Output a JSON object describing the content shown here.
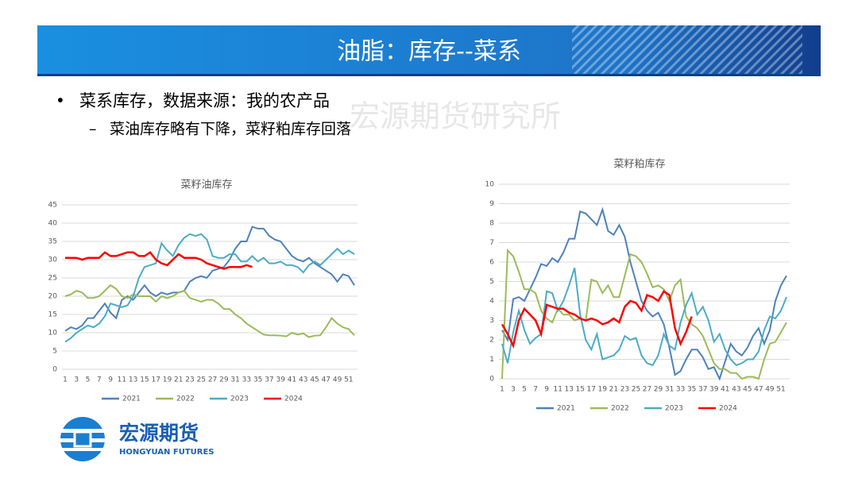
{
  "header": {
    "title": "油脂：库存--菜系"
  },
  "bullets": [
    "菜系库存，数据来源：我的农产品",
    "菜油库存略有下降，菜籽粕库存回落"
  ],
  "watermark": "宏源期货研究所",
  "logo": {
    "name": "宏源期货",
    "en": "HONGYUAN FUTURES"
  },
  "chart_data": [
    {
      "type": "line",
      "title": "菜籽油库存",
      "categories": [
        1,
        null,
        3,
        null,
        5,
        null,
        7,
        null,
        9,
        null,
        11,
        null,
        13,
        null,
        15,
        null,
        17,
        null,
        19,
        null,
        21,
        null,
        23,
        null,
        25,
        null,
        27,
        null,
        29,
        null,
        31,
        null,
        33,
        null,
        35,
        null,
        37,
        null,
        39,
        null,
        41,
        null,
        43,
        null,
        45,
        null,
        47,
        null,
        49,
        null,
        51,
        null
      ],
      "ylim": [
        0,
        45
      ],
      "yticks": [
        0,
        5,
        10,
        15,
        20,
        25,
        30,
        35,
        40,
        45
      ],
      "grid": true,
      "legend": "bottom",
      "series": [
        {
          "name": "2021",
          "color": "#4f81bd",
          "values": [
            10.5,
            11.5,
            11,
            12,
            14,
            14,
            16,
            18,
            15.5,
            14,
            19,
            20,
            19,
            21,
            23,
            21,
            20,
            21,
            20.5,
            21,
            21,
            21.5,
            24,
            25,
            25.5,
            25,
            27,
            27.5,
            28,
            30,
            33,
            35,
            35,
            39,
            38.5,
            38.5,
            36.5,
            35.5,
            35,
            33,
            31,
            30,
            29.5,
            30.5,
            29,
            28,
            27,
            26,
            24,
            26,
            25.5,
            23
          ]
        },
        {
          "name": "2022",
          "color": "#9bbb59",
          "values": [
            20,
            20.5,
            21.5,
            21,
            19.5,
            19.5,
            20,
            21.5,
            23,
            22,
            20,
            19.5,
            20.5,
            20,
            20,
            20,
            18.5,
            20,
            19.5,
            20,
            21,
            21.5,
            19.5,
            19,
            18.5,
            19,
            19,
            18,
            16.5,
            16.5,
            15,
            14,
            12.5,
            11.5,
            10.5,
            9.5,
            9.3,
            9.3,
            9.2,
            9,
            10,
            9.5,
            9.8,
            8.8,
            9.2,
            9.3,
            11.5,
            14,
            12.5,
            11.5,
            11,
            9.3
          ]
        },
        {
          "name": "2023",
          "color": "#4bacc6",
          "values": [
            7.5,
            8.5,
            10,
            11,
            12,
            11.5,
            12.5,
            14.5,
            18,
            17.5,
            17,
            17.5,
            20,
            25,
            28,
            28.5,
            29,
            34.5,
            32.5,
            31,
            34,
            36,
            37,
            36.5,
            37,
            35.5,
            31,
            30.5,
            30.5,
            31.5,
            31.5,
            29.5,
            29.5,
            31,
            29.5,
            30.5,
            29,
            29,
            29.5,
            28.5,
            28.5,
            28,
            26.5,
            28.5,
            29.5,
            28.5,
            30,
            31.5,
            33,
            31.5,
            32.5,
            31.5
          ]
        },
        {
          "name": "2024",
          "color": "#ff0000",
          "values": [
            30.5,
            30.5,
            30.5,
            30,
            30.5,
            30.5,
            30.5,
            32,
            31,
            31,
            31.5,
            32,
            32,
            31,
            31,
            32,
            30,
            29,
            28.5,
            30,
            31.5,
            30.5,
            30.5,
            30.5,
            30,
            29,
            28.5,
            28,
            27.5,
            28,
            28,
            28,
            28.5,
            28,
            null,
            null,
            null,
            null,
            null,
            null,
            null,
            null,
            null,
            null,
            null,
            null,
            null,
            null,
            null,
            null,
            null,
            null
          ]
        }
      ]
    },
    {
      "type": "line",
      "title": "菜籽粕库存",
      "categories": [
        1,
        null,
        3,
        null,
        5,
        null,
        7,
        null,
        9,
        null,
        11,
        null,
        13,
        null,
        15,
        null,
        17,
        null,
        19,
        null,
        21,
        null,
        23,
        null,
        25,
        null,
        27,
        null,
        29,
        null,
        31,
        null,
        33,
        null,
        35,
        null,
        37,
        null,
        39,
        null,
        41,
        null,
        43,
        null,
        45,
        null,
        47,
        null,
        49,
        null,
        51,
        null
      ],
      "ylim": [
        0,
        10
      ],
      "yticks": [
        0,
        1,
        2,
        3,
        4,
        5,
        6,
        7,
        8,
        9,
        10
      ],
      "grid": true,
      "legend": "bottom",
      "series": [
        {
          "name": "2021",
          "color": "#4f81bd",
          "values": [
            2.5,
            2,
            4.1,
            4.2,
            4,
            4.6,
            5.2,
            5.9,
            5.8,
            6.2,
            6,
            6.5,
            7.2,
            7.2,
            8.6,
            8.5,
            8.2,
            7.9,
            8.7,
            7.6,
            7.4,
            7.9,
            7.3,
            6,
            5,
            4,
            3.5,
            3.2,
            3.4,
            2.8,
            1.6,
            0.2,
            0.4,
            1,
            1.5,
            1.5,
            1.1,
            0.5,
            0.6,
            0,
            0.9,
            1.8,
            1.4,
            1.2,
            1.6,
            2.2,
            2.6,
            1.8,
            2.5,
            4,
            4.8,
            5.3
          ]
        },
        {
          "name": "2022",
          "color": "#9bbb59",
          "values": [
            0,
            6.6,
            6.3,
            5.5,
            4.6,
            4.6,
            4.4,
            3.5,
            3.1,
            2.9,
            3.6,
            3.3,
            3.3,
            3,
            3.1,
            3,
            5.1,
            5,
            4.4,
            4.8,
            4.2,
            4.2,
            5.3,
            6.4,
            6.3,
            6,
            5.4,
            4.7,
            4.8,
            4.6,
            4,
            4.8,
            5.1,
            3.2,
            2.8,
            2.6,
            2.2,
            1.5,
            0.8,
            0.5,
            0.5,
            0.3,
            0.3,
            0,
            0.1,
            0.1,
            0,
            1,
            1.8,
            1.9,
            2.4,
            2.9
          ]
        },
        {
          "name": "2023",
          "color": "#4bacc6",
          "values": [
            1.8,
            0.8,
            2.4,
            3.5,
            2.5,
            1.8,
            2.1,
            2.3,
            4.5,
            4.4,
            3.5,
            4,
            4.8,
            5.7,
            3.3,
            2,
            1.5,
            2.3,
            1,
            1.1,
            1.2,
            1.5,
            2.2,
            2,
            2.1,
            1.2,
            0.8,
            0.7,
            1.2,
            2.3,
            1.7,
            1.5,
            2.9,
            3.8,
            4.4,
            3.3,
            3.7,
            3,
            1.9,
            2.3,
            1.5,
            1,
            0.7,
            0.8,
            1,
            1,
            1.4,
            2.5,
            3.2,
            3.1,
            3.5,
            4.2
          ]
        },
        {
          "name": "2024",
          "color": "#ff0000",
          "values": [
            2.8,
            2.3,
            1.7,
            3,
            3.6,
            3.3,
            3,
            2.3,
            3.8,
            3.7,
            3.6,
            3.6,
            3.4,
            3.3,
            3.1,
            3,
            3.1,
            3,
            2.8,
            2.9,
            3.1,
            2.9,
            3.7,
            4,
            3.9,
            3.5,
            4.3,
            4.2,
            4,
            4.5,
            4.3,
            2.6,
            1.8,
            2.4,
            3.2,
            null,
            null,
            null,
            null,
            null,
            null,
            null,
            null,
            null,
            null,
            null,
            null,
            null,
            null,
            null,
            null,
            null
          ]
        }
      ]
    }
  ]
}
